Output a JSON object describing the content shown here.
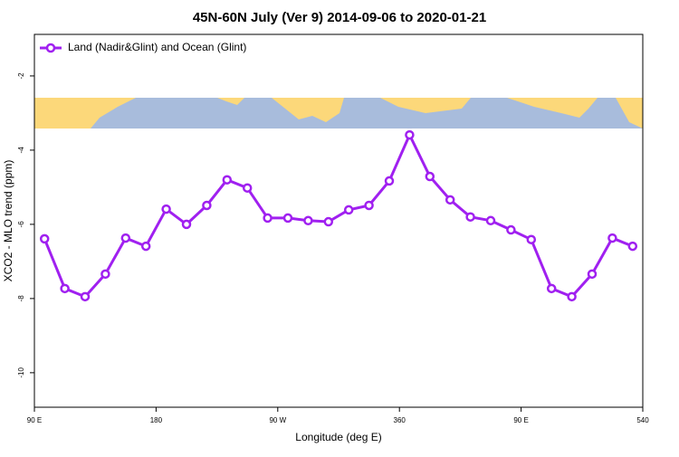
{
  "chart_data": {
    "type": "line",
    "title": "45N-60N July (Ver 9)   2014-09-06 to 2020-01-21",
    "x_label": "Longitude (deg E)",
    "y_label": "XCO2 - MLO trend (ppm)",
    "x": [
      97.5,
      112.5,
      127.5,
      142.5,
      157.5,
      172.5,
      187.5,
      202.5,
      217.5,
      232.5,
      247.5,
      262.5,
      277.5,
      292.5,
      307.5,
      322.5,
      337.5,
      352.5,
      367.5,
      382.5,
      397.5,
      412.5,
      427.5,
      442.5,
      457.5,
      472.5,
      487.5,
      502.5,
      517.5,
      532.5
    ],
    "series": [
      {
        "name": "Land (Nadir&Glint) and Ocean (Glint)",
        "color": "#a020f0",
        "values": [
          -6.39,
          -7.73,
          -7.95,
          -7.34,
          -6.37,
          -6.59,
          -5.59,
          -6.0,
          -5.49,
          -4.8,
          -5.02,
          -5.83,
          -5.83,
          -5.9,
          -5.93,
          -5.61,
          -5.49,
          -4.83,
          -3.59,
          -4.71,
          -5.34,
          -5.8,
          -5.9,
          -6.15,
          -6.41,
          -7.73,
          -7.95,
          -7.34,
          -6.37,
          -6.59
        ]
      }
    ],
    "xlim": [
      90,
      540
    ],
    "xticks": [
      {
        "value": 90,
        "label": "90 E"
      },
      180,
      {
        "value": 270,
        "label": "90 W"
      },
      360,
      {
        "value": 450,
        "label": "90 E"
      },
      540
    ],
    "ylim": [
      -10.93,
      -0.88
    ],
    "yticks": [
      -10,
      -8,
      -6,
      -4,
      -2
    ],
    "legend": "top-left"
  }
}
